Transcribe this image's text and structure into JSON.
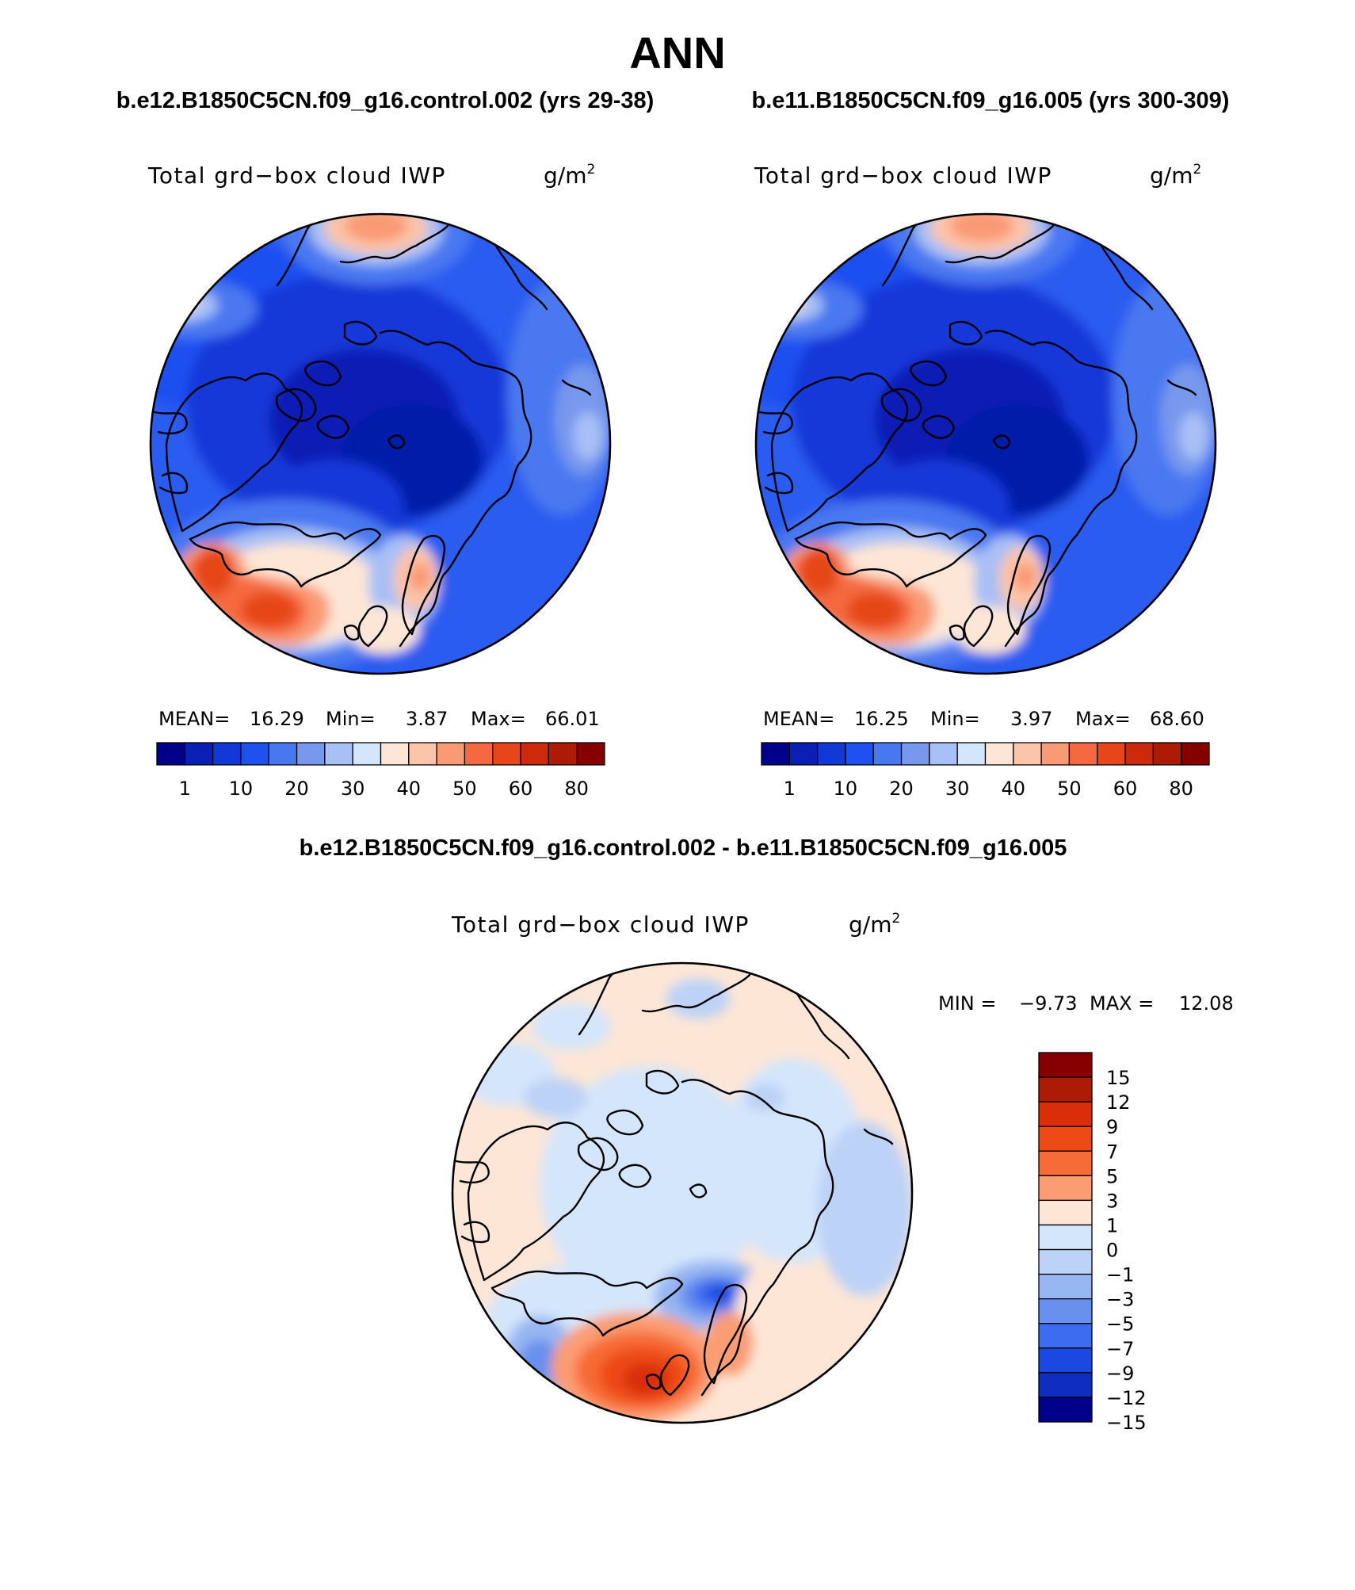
{
  "title": "ANN",
  "panels": [
    {
      "case_title": "b.e12.B1850C5CN.f09_g16.control.002 (yrs 29-38)",
      "var_label": "Total grd−box cloud IWP",
      "units": "g/m",
      "units_exp": "2",
      "stats": {
        "mean_label": "MEAN=",
        "mean": "16.29",
        "min_label": "Min=",
        "min": "3.87",
        "max_label": "Max=",
        "max": "66.01"
      }
    },
    {
      "case_title": "b.e11.B1850C5CN.f09_g16.005 (yrs 300-309)",
      "var_label": "Total grd−box cloud IWP",
      "units": "g/m",
      "units_exp": "2",
      "stats": {
        "mean_label": "MEAN=",
        "mean": "16.25",
        "min_label": "Min=",
        "min": "3.97",
        "max_label": "Max=",
        "max": "68.60"
      }
    }
  ],
  "diff_panel": {
    "case_title": "b.e12.B1850C5CN.f09_g16.control.002 - b.e11.B1850C5CN.f09_g16.005",
    "var_label": "Total grd−box cloud IWP",
    "units": "g/m",
    "units_exp": "2",
    "stats": {
      "min_label": "MIN =",
      "min": "−9.73",
      "max_label": "MAX =",
      "max": "12.08"
    }
  },
  "colorbar_abs": {
    "colors": [
      "#00008b",
      "#0a1fb4",
      "#1238d8",
      "#1e52f0",
      "#4878f0",
      "#7898ee",
      "#a8c0f5",
      "#d4e6fb",
      "#fde6d6",
      "#fcc4a8",
      "#f99a74",
      "#f4693f",
      "#e64619",
      "#cc2a0a",
      "#ad1b06",
      "#870000"
    ],
    "tick_labels": [
      "1",
      "10",
      "20",
      "30",
      "40",
      "50",
      "60",
      "80"
    ]
  },
  "colorbar_diff": {
    "colors": [
      "#870000",
      "#ad1b06",
      "#d92e08",
      "#ed4a16",
      "#f76b36",
      "#fb9c72",
      "#fde6d6",
      "#d4e6fb",
      "#bcd2f7",
      "#98b6f2",
      "#6890ee",
      "#3e6cf0",
      "#1a48e0",
      "#0d2ebe",
      "#00008b"
    ],
    "tick_labels": [
      "15",
      "12",
      "9",
      "7",
      "5",
      "3",
      "1",
      "0",
      "−1",
      "−3",
      "−5",
      "−7",
      "−9",
      "−12",
      "−15"
    ]
  }
}
